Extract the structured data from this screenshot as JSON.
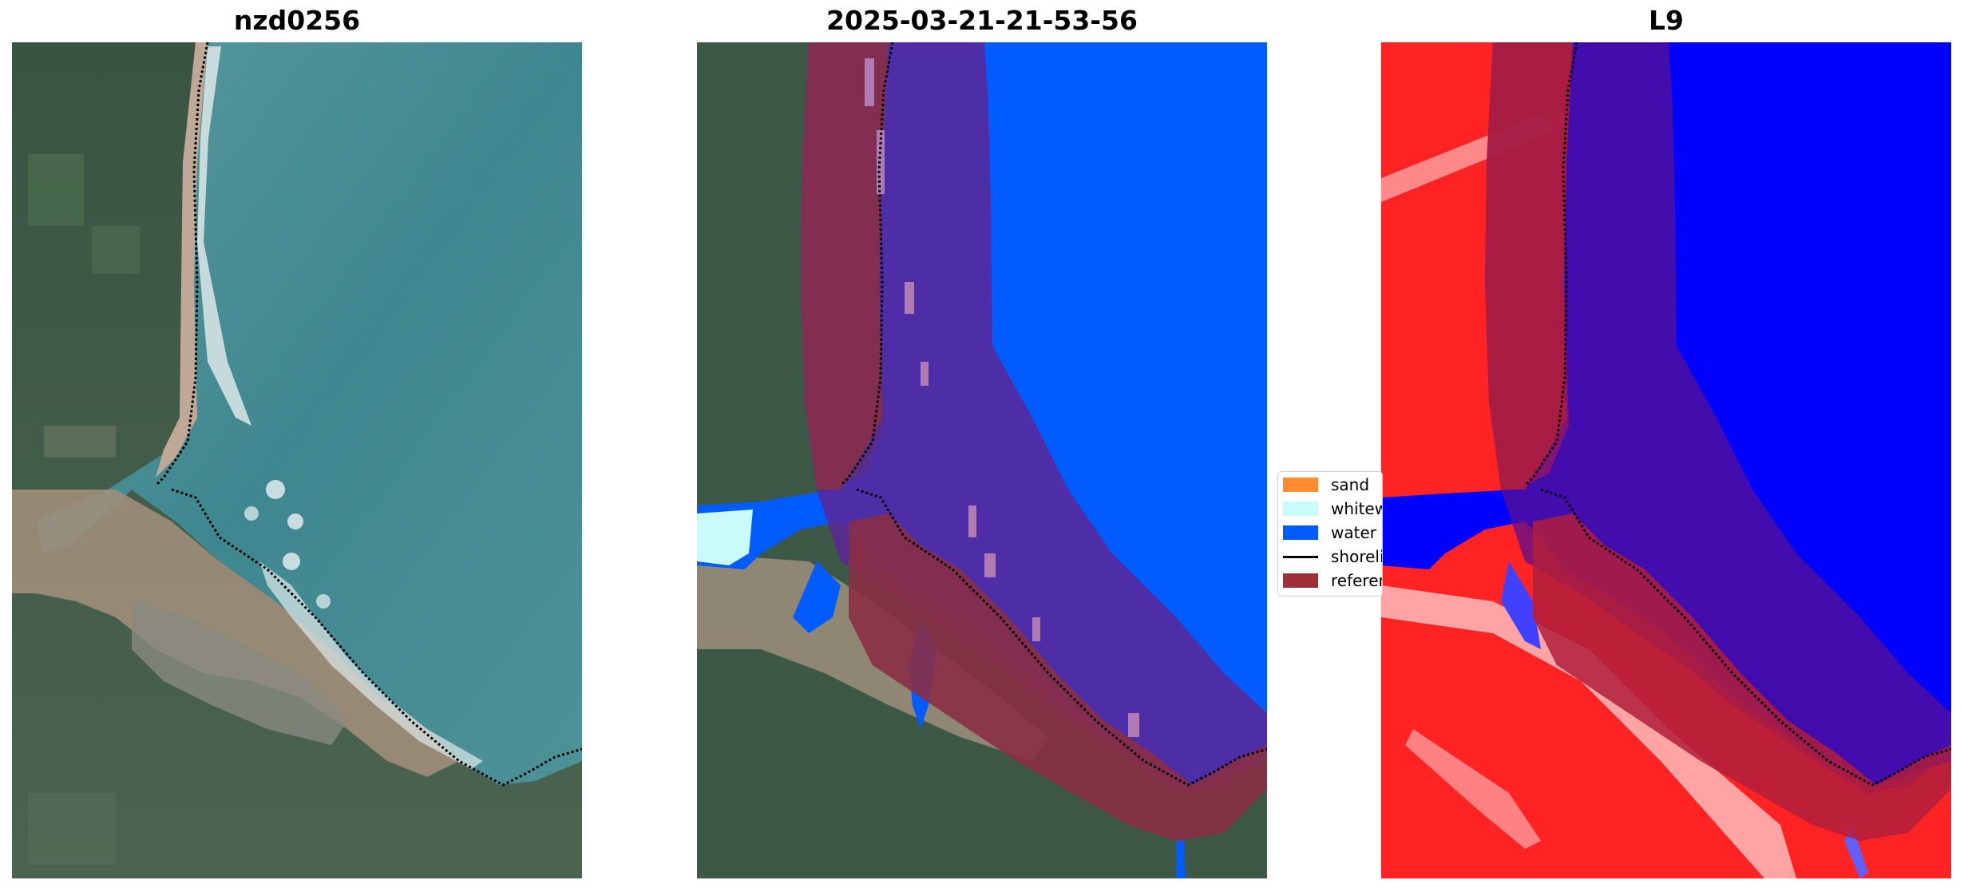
{
  "panels": [
    {
      "title": "nzd0256"
    },
    {
      "title": "2025-03-21-21-53-56"
    },
    {
      "title": "L9"
    }
  ],
  "legend": {
    "items": [
      {
        "label": "sand",
        "kind": "patch",
        "color": "#ff8c2e"
      },
      {
        "label": "whitewater",
        "kind": "patch",
        "color": "#c9fbfb"
      },
      {
        "label": "water",
        "kind": "patch",
        "color": "#005cff"
      },
      {
        "label": "shoreline",
        "kind": "line",
        "color": "#000000"
      },
      {
        "label": "reference",
        "kind": "patch",
        "color": "#9e2f38"
      }
    ]
  },
  "colors": {
    "ocean": "#4a8f93",
    "land": "#3f5a45",
    "water_class": "#005cff",
    "whitewater_class": "#c9fbfb",
    "reference_buffer": "#9e2f38",
    "mndwi_land": "#ff1a1a",
    "mndwi_water": "#0000ff"
  }
}
